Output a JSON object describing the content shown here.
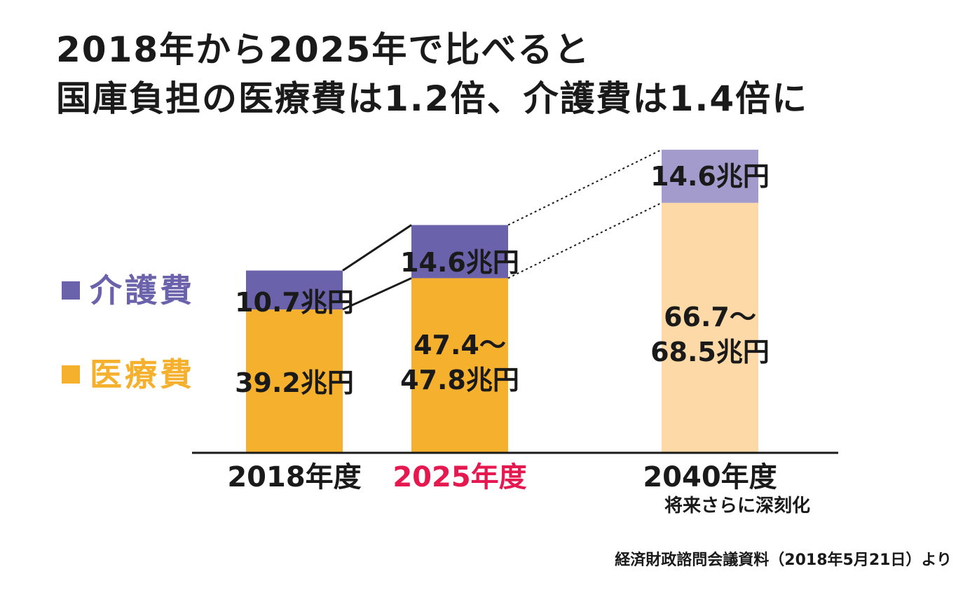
{
  "title": {
    "line1": "2018年から2025年で比べると",
    "line2": "国庫負担の医療費は1.2倍、介護費は1.4倍に"
  },
  "legend": [
    {
      "label": "介護費",
      "color": "#6a62ab"
    },
    {
      "label": "医療費",
      "color": "#f5b12e"
    }
  ],
  "chart_data": {
    "type": "bar",
    "stacked": true,
    "categories": [
      "2018年度",
      "2025年度",
      "2040年度"
    ],
    "category_colors": [
      "#1a1a1a",
      "#e5194f",
      "#1a1a1a"
    ],
    "category_notes": [
      "",
      "",
      "将来さらに深刻化"
    ],
    "unit": "兆円",
    "series": [
      {
        "name": "医療費",
        "values": [
          39.2,
          47.8,
          68.5
        ],
        "colors": [
          "#f5b12e",
          "#f5b12e",
          "#fcd9a6"
        ],
        "labels": [
          [
            "39.2兆円"
          ],
          [
            "47.4～",
            "47.8兆円"
          ],
          [
            "66.7～",
            "68.5兆円"
          ]
        ]
      },
      {
        "name": "介護費",
        "values": [
          10.7,
          14.6,
          14.6
        ],
        "colors": [
          "#6a62ab",
          "#6a62ab",
          "#a29bcc"
        ],
        "labels": [
          [
            "10.7兆円"
          ],
          [
            "14.6兆円"
          ],
          [
            "14.6兆円"
          ]
        ]
      }
    ]
  },
  "source": "経済財政諮問会議資料（2018年5月21日）より"
}
